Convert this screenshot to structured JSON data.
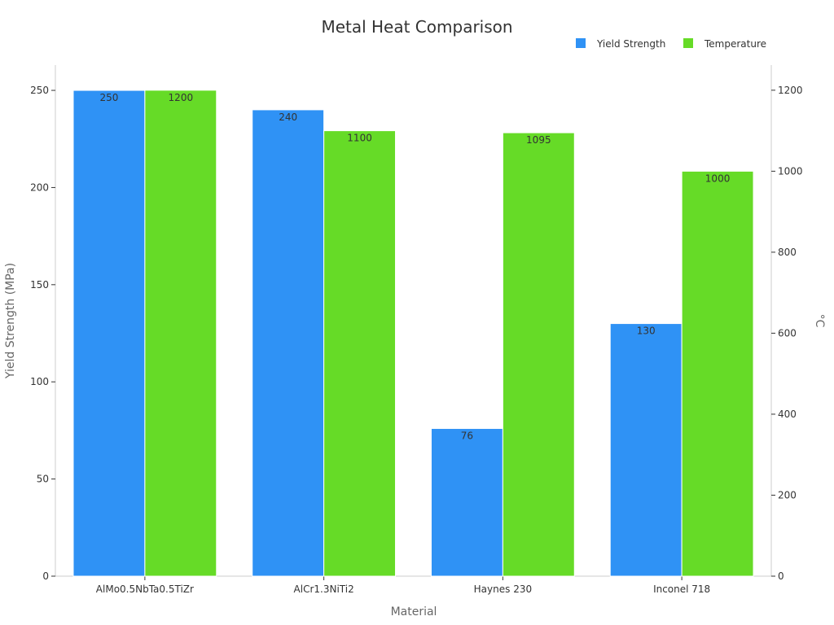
{
  "chart_data": {
    "type": "bar",
    "title": "Metal Heat Comparison",
    "xlabel": "Material",
    "ylabel": "Yield Strength (MPa)",
    "y2label": "°C",
    "categories": [
      "AlMo0.5NbTa0.5TiZr",
      "AlCr1.3NiTi2",
      "Haynes 230",
      "Inconel 718"
    ],
    "series": [
      {
        "name": "Yield Strength",
        "axis": "left",
        "color": "#2f92f5",
        "values": [
          250,
          240,
          76,
          130
        ]
      },
      {
        "name": "Temperature",
        "axis": "right",
        "color": "#66db27",
        "values": [
          1200,
          1100,
          1095,
          1000
        ]
      }
    ],
    "ylim": [
      0,
      263
    ],
    "y2lim": [
      0,
      1262
    ],
    "yticks": [
      0,
      50,
      100,
      150,
      200,
      250
    ],
    "y2ticks": [
      0,
      200,
      400,
      600,
      800,
      1000,
      1200
    ],
    "legend_position": "top-right",
    "grid": false
  }
}
